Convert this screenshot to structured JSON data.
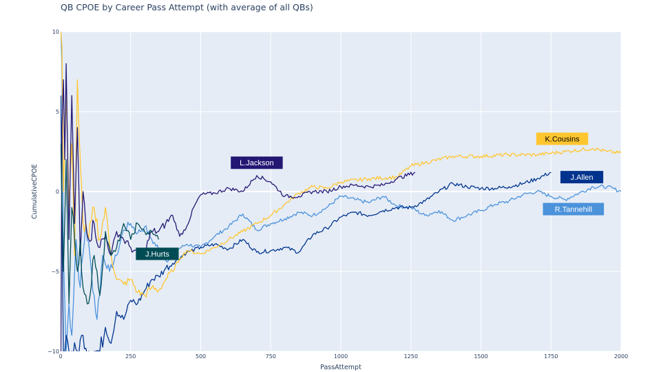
{
  "chart_data": {
    "type": "line",
    "title": "QB CPOE by Career Pass Attempt (with average of all QBs)",
    "xlabel": "PassAttempt",
    "ylabel": "CumulativeCPOE",
    "xlim": [
      0,
      2000
    ],
    "ylim": [
      -10,
      10
    ],
    "xticks": [
      0,
      250,
      500,
      750,
      1000,
      1250,
      1500,
      1750,
      2000
    ],
    "xtick_labels": [
      "0",
      "250",
      "500",
      "750",
      "1000",
      "1250",
      "1500",
      "1750",
      "2000"
    ],
    "yticks": [
      -10,
      -5,
      0,
      5,
      10
    ],
    "ytick_labels": [
      "−10",
      "−5",
      "0",
      "5",
      "10"
    ],
    "grid": true,
    "legend": "none (direct labels)",
    "series": [
      {
        "name": "R.Tannehill",
        "color": "#4B92DB",
        "x": [
          1,
          5,
          10,
          20,
          30,
          40,
          55,
          70,
          90,
          110,
          130,
          150,
          175,
          200,
          225,
          250,
          275,
          300,
          325,
          350,
          375,
          400,
          450,
          500,
          550,
          600,
          650,
          700,
          750,
          800,
          850,
          900,
          950,
          1000,
          1050,
          1100,
          1150,
          1200,
          1250,
          1300,
          1350,
          1400,
          1450,
          1500,
          1550,
          1600,
          1650,
          1700,
          1750,
          1800,
          1850,
          1900,
          1950,
          2000
        ],
        "y": [
          10,
          8,
          -4,
          -10,
          -7,
          -9,
          -3,
          -6,
          -2,
          -5,
          -8,
          -4,
          -5,
          -4,
          -2.4,
          -2.0,
          -2.6,
          -2.2,
          -3.0,
          -3.6,
          -4.3,
          -3.8,
          -3.3,
          -3.5,
          -2.8,
          -2.2,
          -1.4,
          -2.4,
          -2.0,
          -1.7,
          -1.3,
          -1.5,
          -1.0,
          -0.3,
          -0.5,
          -0.7,
          -0.3,
          -0.9,
          -1.0,
          -1.5,
          -1.2,
          -1.8,
          -1.5,
          -1.2,
          -0.8,
          -0.6,
          -0.2,
          0.0,
          -0.3,
          -0.5,
          -0.1,
          0.3,
          0.3,
          0.0
        ]
      },
      {
        "name": "J.Allen",
        "color": "#00338D",
        "x": [
          1,
          5,
          10,
          20,
          30,
          40,
          60,
          80,
          100,
          120,
          140,
          160,
          180,
          200,
          225,
          250,
          275,
          300,
          325,
          350,
          375,
          400,
          450,
          500,
          550,
          600,
          650,
          700,
          750,
          800,
          850,
          900,
          950,
          1000,
          1050,
          1100,
          1150,
          1200,
          1250,
          1300,
          1350,
          1400,
          1450,
          1500,
          1550,
          1600,
          1650,
          1700,
          1750
        ],
        "y": [
          6,
          -2,
          -10,
          -9,
          -10,
          -10,
          -10,
          -9,
          -10,
          -10,
          -10,
          -8.5,
          -9.5,
          -7.5,
          -8.0,
          -6.8,
          -7.0,
          -6.2,
          -5.5,
          -5.3,
          -4.8,
          -4.5,
          -3.8,
          -3.5,
          -3.3,
          -3.6,
          -3.0,
          -3.8,
          -3.7,
          -3.5,
          -3.8,
          -2.7,
          -2.3,
          -1.6,
          -1.3,
          -1.5,
          -1.2,
          -1.0,
          -1.0,
          -0.6,
          0.0,
          0.5,
          0.3,
          0.2,
          0.2,
          0.3,
          0.5,
          0.8,
          1.2
        ]
      },
      {
        "name": "K.Cousins",
        "color": "#FFC62F",
        "x": [
          1,
          5,
          10,
          20,
          30,
          40,
          50,
          60,
          70,
          80,
          100,
          120,
          140,
          160,
          180,
          200,
          225,
          250,
          275,
          300,
          325,
          350,
          375,
          400,
          425,
          450,
          500,
          550,
          600,
          650,
          700,
          750,
          800,
          850,
          900,
          950,
          1000,
          1100,
          1200,
          1250,
          1300,
          1400,
          1500,
          1600,
          1700,
          1800,
          1900,
          1950,
          2000
        ],
        "y": [
          10,
          9,
          0,
          6,
          -1,
          3,
          -4,
          7,
          2,
          -2,
          -3,
          -1,
          -3,
          -1,
          -4,
          -5.5,
          -5.8,
          -5.5,
          -6.3,
          -6.5,
          -6.0,
          -6.2,
          -5.5,
          -5.0,
          -4.2,
          -3.7,
          -3.9,
          -3.5,
          -3.0,
          -2.5,
          -2.0,
          -1.5,
          -0.8,
          -0.1,
          0.3,
          0.2,
          0.6,
          0.8,
          0.9,
          1.6,
          1.8,
          2.2,
          2.2,
          2.3,
          2.3,
          2.5,
          2.7,
          2.5,
          2.4
        ]
      },
      {
        "name": "L.Jackson",
        "color": "#241773",
        "x": [
          1,
          5,
          10,
          15,
          20,
          30,
          40,
          50,
          60,
          70,
          80,
          100,
          120,
          140,
          160,
          180,
          200,
          225,
          250,
          275,
          300,
          325,
          350,
          375,
          400,
          425,
          450,
          475,
          500,
          550,
          600,
          650,
          700,
          750,
          800,
          850,
          900,
          950,
          1000,
          1050,
          1100,
          1150,
          1200,
          1265
        ],
        "y": [
          -10,
          4,
          7,
          2,
          8,
          -3,
          6,
          -2,
          4,
          -4,
          0,
          -3,
          -2,
          -3.5,
          -2.8,
          -4.0,
          -2.5,
          -3.0,
          -3.5,
          -4.0,
          -3.7,
          -2.5,
          -2.5,
          -2.0,
          -1.5,
          -2.8,
          -2.2,
          -1.0,
          -0.2,
          -0.1,
          0.2,
          0.0,
          1.0,
          0.6,
          -0.3,
          -0.3,
          0.0,
          0.0,
          0.3,
          0.4,
          0.3,
          0.4,
          0.8,
          1.2
        ]
      },
      {
        "name": "J.Hurts",
        "color": "#004C54",
        "x": [
          1,
          5,
          10,
          20,
          30,
          40,
          50,
          60,
          70,
          80,
          100,
          120,
          140,
          160,
          180,
          200,
          225,
          250,
          275,
          300,
          325,
          350
        ],
        "y": [
          3,
          -1,
          -5,
          2,
          -7,
          -1,
          -3,
          -5,
          -3,
          -6,
          -7,
          -4,
          -6.5,
          -2.5,
          -4,
          -3.5,
          -2.0,
          -3.0,
          -2.0,
          -2.5,
          -2.5,
          -3.0
        ]
      }
    ],
    "annotations": [
      {
        "text": "L.Jackson",
        "series": "L.Jackson",
        "x": 700,
        "y": 1.8,
        "bgcolor": "#241773",
        "fontcolor": "#ffffff"
      },
      {
        "text": "K.Cousins",
        "series": "K.Cousins",
        "x": 1790,
        "y": 3.3,
        "bgcolor": "#FFC62F",
        "fontcolor": "#000000"
      },
      {
        "text": "J.Allen",
        "series": "J.Allen",
        "x": 1860,
        "y": 0.9,
        "bgcolor": "#00338D",
        "fontcolor": "#ffffff"
      },
      {
        "text": "R.Tannehill",
        "series": "R.Tannehill",
        "x": 1830,
        "y": -1.1,
        "bgcolor": "#4B92DB",
        "fontcolor": "#ffffff"
      },
      {
        "text": "J.Hurts",
        "series": "J.Hurts",
        "x": 345,
        "y": -3.9,
        "bgcolor": "#004C54",
        "fontcolor": "#ffffff"
      }
    ],
    "colors": {
      "plot_background": "#E5ECF6",
      "grid": "#ffffff",
      "text": "#2a3f5f"
    }
  }
}
